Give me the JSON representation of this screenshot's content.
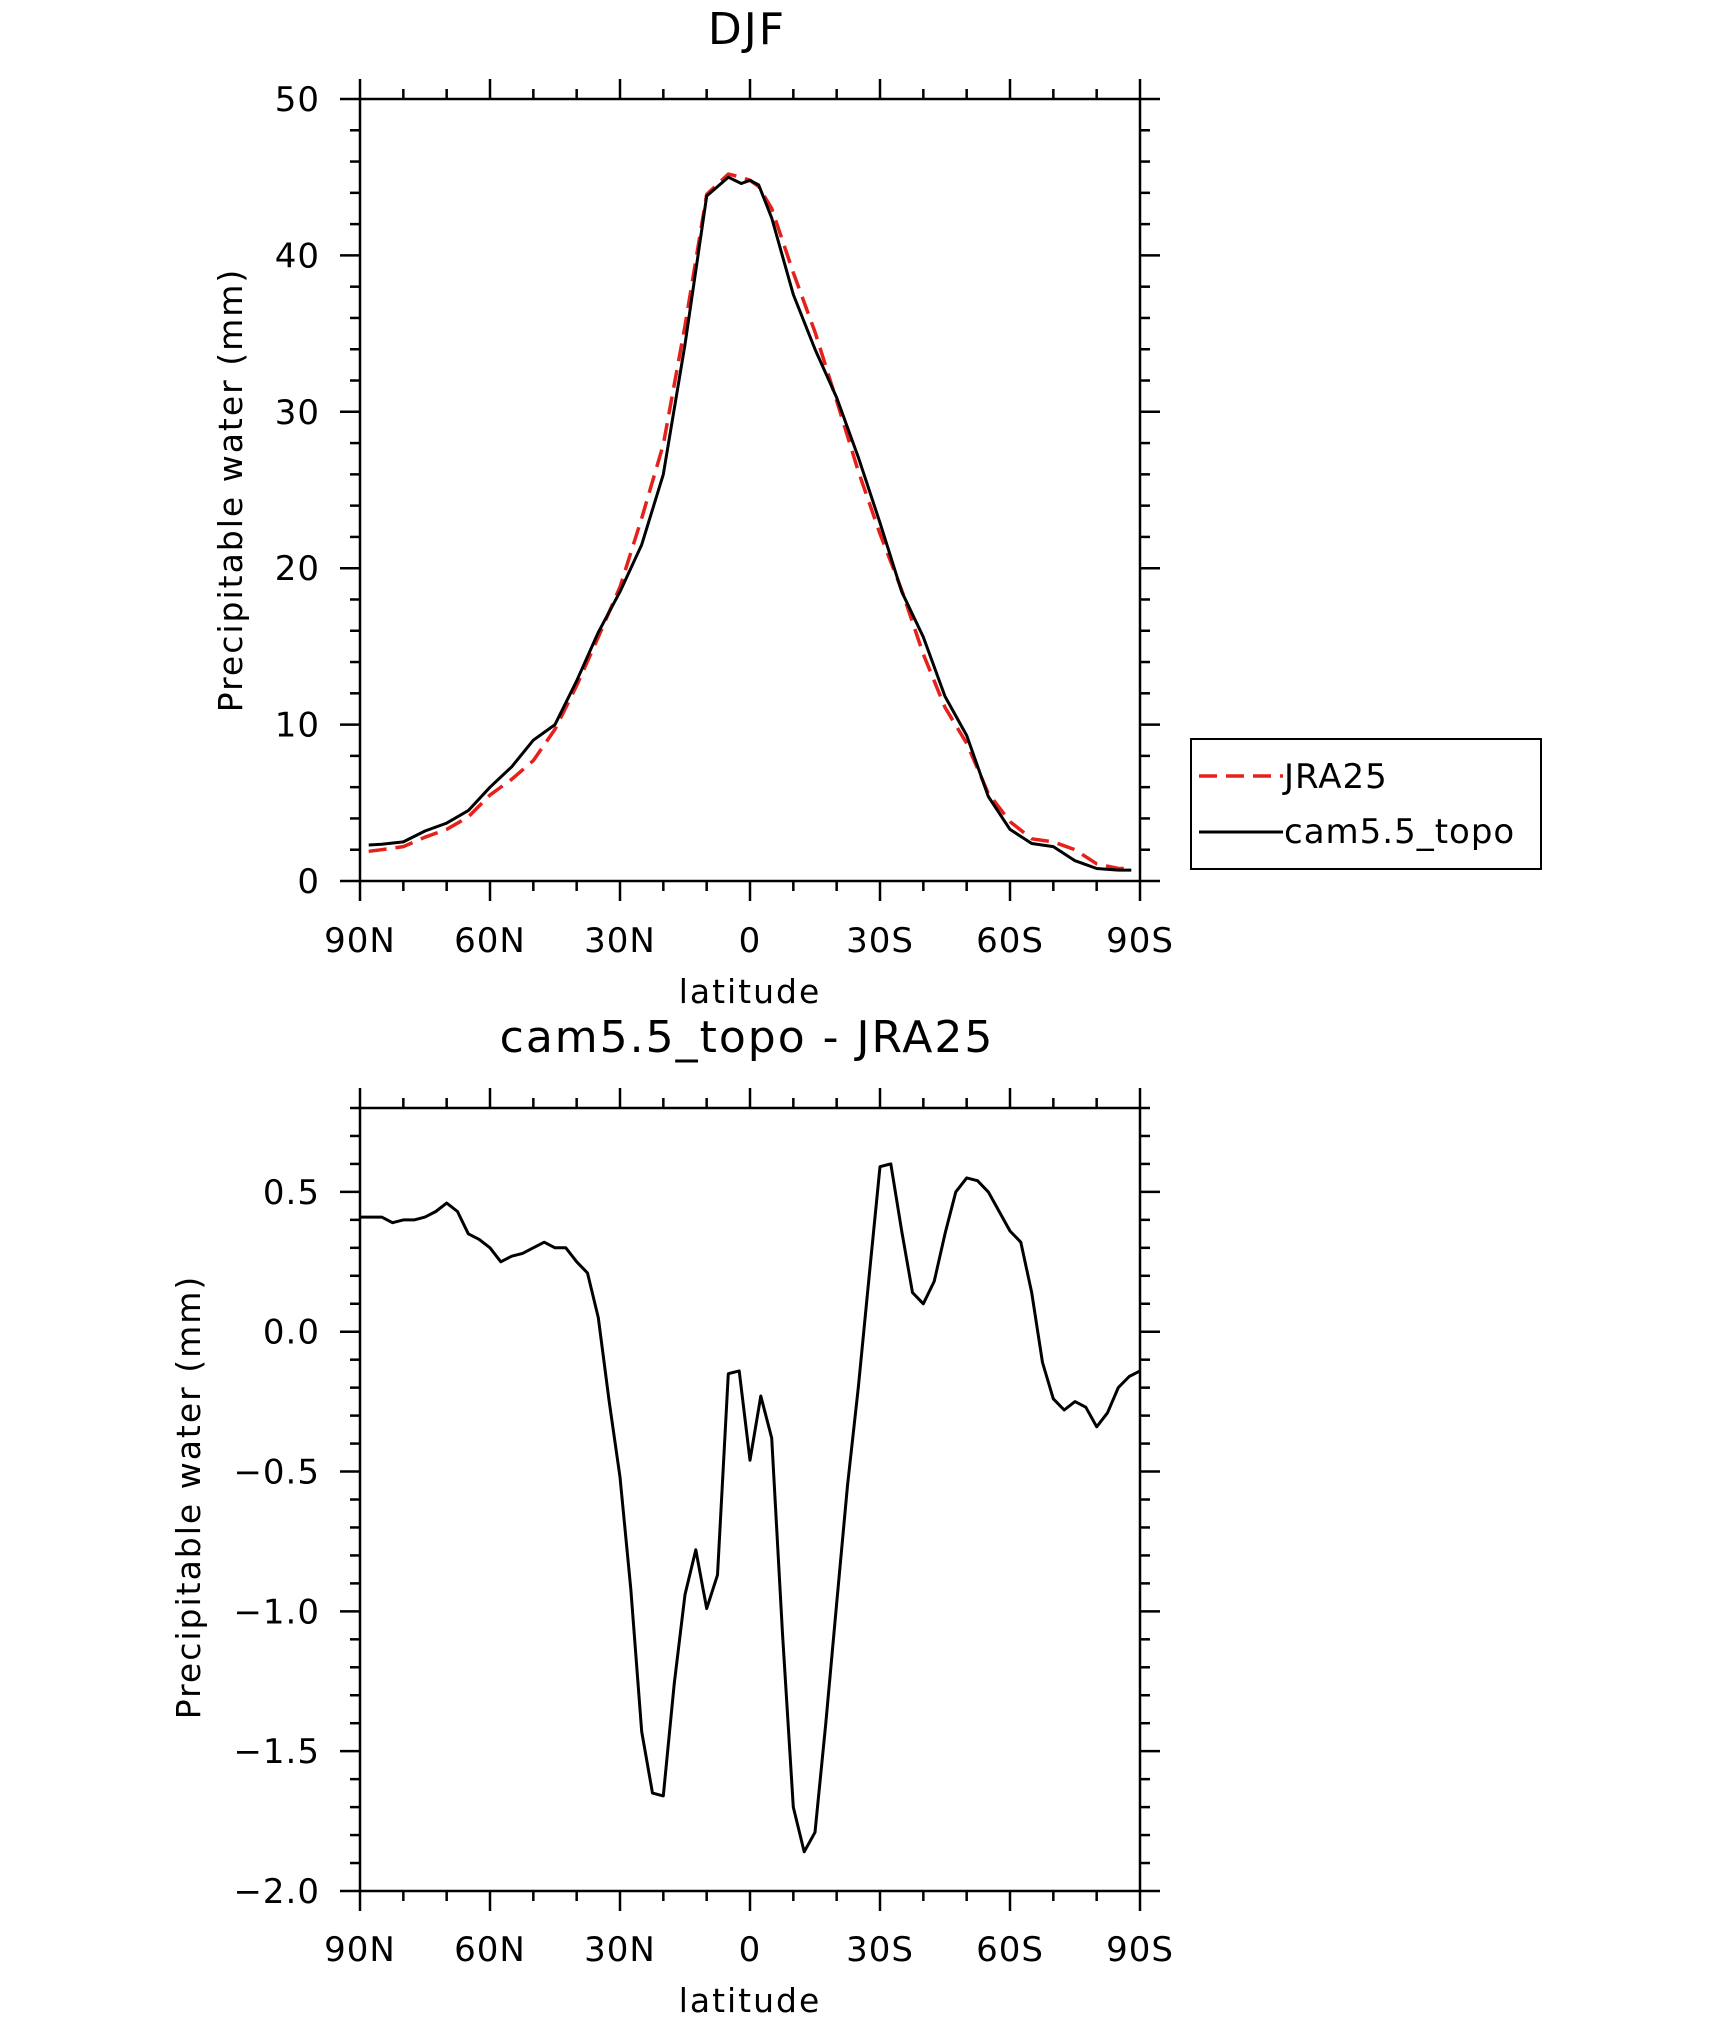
{
  "chart_data": [
    {
      "type": "line",
      "title": "DJF",
      "xlabel": "latitude",
      "ylabel": "Precipitable water (mm)",
      "ylim": [
        0,
        50
      ],
      "xlim": [
        -90,
        90
      ],
      "x_axis_note": "x values are latitude in degrees, positive = N, negative = S; plotted 90N left to 90S right",
      "yticks": [
        "0",
        "10",
        "20",
        "30",
        "40",
        "50"
      ],
      "xticks": [
        "90N",
        "60N",
        "30N",
        "0",
        "30S",
        "60S",
        "90S"
      ],
      "legend": {
        "placement": "right",
        "entries": [
          "JRA25",
          "cam5.5_topo"
        ]
      },
      "series": [
        {
          "name": "JRA25",
          "color": "#e8201c",
          "style": "dashed",
          "x": [
            88,
            85,
            80,
            75,
            70,
            65,
            60,
            55,
            50,
            45,
            40,
            35,
            30,
            25,
            20,
            15,
            10,
            5,
            2,
            0,
            -2,
            -5,
            -10,
            -15,
            -20,
            -25,
            -30,
            -35,
            -40,
            -45,
            -50,
            -55,
            -60,
            -65,
            -70,
            -75,
            -80,
            -85,
            -88
          ],
          "y": [
            1.9,
            2.0,
            2.2,
            2.8,
            3.3,
            4.1,
            5.5,
            6.5,
            7.7,
            9.7,
            12.5,
            15.6,
            18.8,
            23.2,
            27.9,
            35.5,
            43.9,
            45.2,
            45.0,
            44.8,
            44.4,
            43.0,
            38.9,
            35.1,
            30.7,
            26.2,
            22.2,
            18.6,
            14.5,
            11.1,
            8.8,
            5.6,
            3.8,
            2.7,
            2.5,
            2.0,
            1.1,
            0.8,
            0.8
          ]
        },
        {
          "name": "cam5.5_topo",
          "color": "#000000",
          "style": "solid",
          "x": [
            88,
            85,
            80,
            75,
            70,
            65,
            60,
            55,
            50,
            45,
            40,
            35,
            30,
            25,
            20,
            15,
            10,
            5,
            2,
            0,
            -2,
            -5,
            -10,
            -15,
            -20,
            -25,
            -30,
            -35,
            -40,
            -45,
            -50,
            -55,
            -60,
            -65,
            -70,
            -75,
            -80,
            -85,
            -88
          ],
          "y": [
            2.3,
            2.35,
            2.5,
            3.2,
            3.7,
            4.5,
            6.0,
            7.3,
            9.0,
            10.0,
            12.8,
            15.9,
            18.5,
            21.5,
            26.0,
            34.3,
            43.8,
            45.0,
            44.6,
            44.8,
            44.5,
            42.4,
            37.5,
            34.0,
            30.9,
            27.1,
            22.9,
            18.5,
            15.6,
            11.8,
            9.3,
            5.4,
            3.3,
            2.4,
            2.2,
            1.3,
            0.8,
            0.7,
            0.7
          ]
        }
      ]
    },
    {
      "type": "line",
      "title": "cam5.5_topo - JRA25",
      "xlabel": "latitude",
      "ylabel": "Precipitable water (mm)",
      "ylim": [
        -2.0,
        0.8
      ],
      "xlim": [
        -90,
        90
      ],
      "yticks": [
        "-2.0",
        "-1.5",
        "-1.0",
        "-0.5",
        "0.0",
        "0.5"
      ],
      "xticks": [
        "90N",
        "60N",
        "30N",
        "0",
        "30S",
        "60S",
        "90S"
      ],
      "series": [
        {
          "color": "#000000",
          "style": "solid",
          "x": [
            90,
            87.5,
            85,
            82.5,
            80,
            77.5,
            75,
            72.5,
            70,
            67.5,
            65,
            62.5,
            60,
            57.5,
            55,
            52.5,
            50,
            47.5,
            45,
            42.5,
            40,
            37.5,
            35,
            32.5,
            30,
            27.5,
            25,
            22.5,
            20,
            17.5,
            15,
            12.5,
            10,
            7.5,
            5,
            2.5,
            0,
            -2.5,
            -5,
            -7.5,
            -10,
            -12.5,
            -15,
            -17.5,
            -20,
            -22.5,
            -25,
            -27.5,
            -30,
            -32.5,
            -35,
            -37.5,
            -40,
            -42.5,
            -45,
            -47.5,
            -50,
            -52.5,
            -55,
            -57.5,
            -60,
            -62.5,
            -65,
            -67.5,
            -70,
            -72.5,
            -75,
            -77.5,
            -80,
            -82.5,
            -85,
            -87.5,
            -90
          ],
          "y": [
            0.41,
            0.41,
            0.41,
            0.39,
            0.4,
            0.4,
            0.41,
            0.43,
            0.46,
            0.43,
            0.35,
            0.33,
            0.3,
            0.25,
            0.27,
            0.28,
            0.3,
            0.32,
            0.3,
            0.3,
            0.25,
            0.21,
            0.05,
            -0.25,
            -0.52,
            -0.92,
            -1.43,
            -1.65,
            -1.66,
            -1.26,
            -0.94,
            -0.78,
            -0.99,
            -0.87,
            -0.15,
            -0.14,
            -0.46,
            -0.23,
            -0.38,
            -1.08,
            -1.7,
            -1.86,
            -1.79,
            -1.4,
            -0.97,
            -0.55,
            -0.2,
            0.2,
            0.59,
            0.6,
            0.36,
            0.14,
            0.1,
            0.18,
            0.35,
            0.5,
            0.55,
            0.54,
            0.5,
            0.43,
            0.36,
            0.32,
            0.14,
            -0.11,
            -0.24,
            -0.28,
            -0.25,
            -0.27,
            -0.34,
            -0.29,
            -0.2,
            -0.16,
            -0.14
          ]
        }
      ]
    }
  ]
}
